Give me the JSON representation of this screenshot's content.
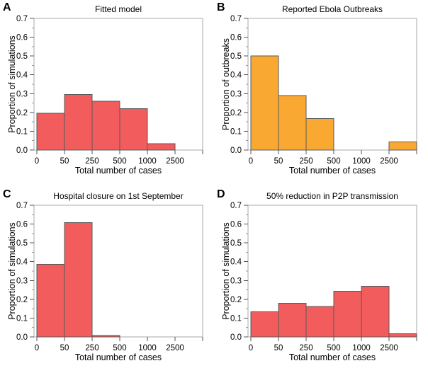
{
  "figure": {
    "style": {
      "bar_edge_color": "#5a5a5a",
      "frame_color": "#aaaaaa",
      "tick_color": "#555555",
      "minor_tick_color": "#999999",
      "simulation_bar_color": "#f35c5c",
      "outbreak_bar_color": "#f9a832"
    },
    "shared": {
      "y_tick_labels": [
        "0.0",
        "0.1",
        "0.2",
        "0.3",
        "0.4",
        "0.5",
        "0.6",
        "0.7"
      ],
      "y_max": 0.7
    }
  },
  "chart_data": [
    {
      "type": "bar",
      "panel_letter": "A",
      "title": "Fitted model",
      "xlabel": "Total number of cases",
      "ylabel": "Proportion of simulations",
      "categories": [
        "0-50",
        "50-250",
        "250-500",
        "500-1000",
        "1000-2500",
        "2500+"
      ],
      "values": [
        0.195,
        0.295,
        0.26,
        0.22,
        0.033,
        0
      ],
      "x_tick_labels": [
        "0",
        "50",
        "250",
        "500",
        "1000",
        "2500"
      ],
      "ylim": [
        0,
        0.7
      ],
      "grid": false,
      "legend": "none",
      "bar_color": "#f35c5c"
    },
    {
      "type": "bar",
      "panel_letter": "B",
      "title": "Reported Ebola Outbreaks",
      "xlabel": "Total number of cases",
      "ylabel": "Proportion of outbreaks",
      "categories": [
        "0-50",
        "50-250",
        "250-500",
        "500-1000",
        "1000-2500",
        "2500+"
      ],
      "values": [
        0.5,
        0.29,
        0.168,
        0,
        0,
        0.043
      ],
      "x_tick_labels": [
        "0",
        "50",
        "250",
        "500",
        "1000",
        "2500"
      ],
      "ylim": [
        0,
        0.7
      ],
      "grid": false,
      "legend": "none",
      "bar_color": "#f9a832"
    },
    {
      "type": "bar",
      "panel_letter": "C",
      "title": "Hospital closure on 1st September",
      "xlabel": "Total number of cases",
      "ylabel": "Proportion of simulations",
      "categories": [
        "0-50",
        "50-250",
        "250-500",
        "500-1000",
        "1000-2500",
        "2500+"
      ],
      "values": [
        0.385,
        0.607,
        0.008,
        0,
        0,
        0
      ],
      "x_tick_labels": [
        "0",
        "50",
        "250",
        "500",
        "1000",
        "2500"
      ],
      "ylim": [
        0,
        0.7
      ],
      "grid": false,
      "legend": "none",
      "bar_color": "#f35c5c"
    },
    {
      "type": "bar",
      "panel_letter": "D",
      "title": "50% reduction in P2P transmission",
      "xlabel": "Total number of cases",
      "ylabel": "Proportion of simulations",
      "categories": [
        "0-50",
        "50-250",
        "250-500",
        "500-1000",
        "1000-2500",
        "2500+"
      ],
      "values": [
        0.133,
        0.178,
        0.162,
        0.243,
        0.27,
        0.016
      ],
      "x_tick_labels": [
        "0",
        "50",
        "250",
        "500",
        "1000",
        "2500"
      ],
      "ylim": [
        0,
        0.7
      ],
      "grid": false,
      "legend": "none",
      "bar_color": "#f35c5c"
    }
  ]
}
